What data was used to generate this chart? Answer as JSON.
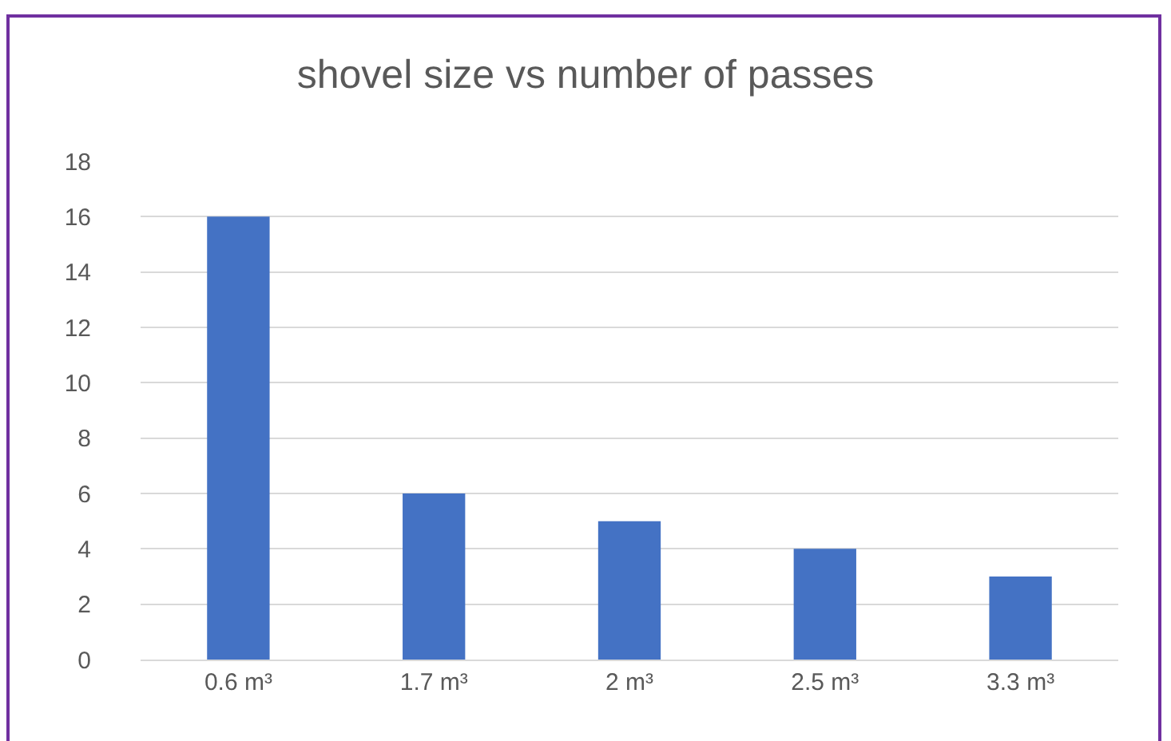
{
  "chart_data": {
    "type": "bar",
    "title": "shovel size vs number of passes",
    "categories": [
      "0.6 m³",
      "1.7 m³",
      "2 m³",
      "2.5 m³",
      "3.3 m³"
    ],
    "values": [
      16,
      6,
      5,
      4,
      3
    ],
    "color": "#4472c4",
    "ylim": [
      0,
      18
    ],
    "yticks": [
      0,
      2,
      4,
      6,
      8,
      10,
      12,
      14,
      16,
      18
    ],
    "grid": "y",
    "legend": false
  }
}
